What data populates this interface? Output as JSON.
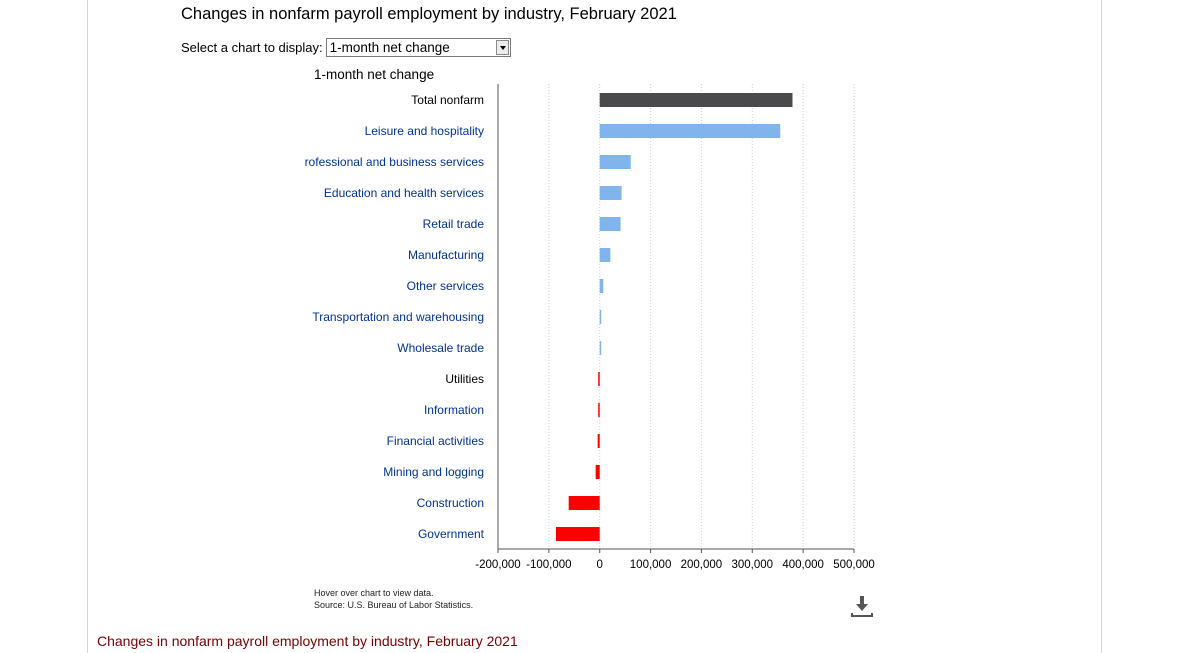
{
  "page": {
    "title": "Changes in nonfarm payroll employment by industry, February 2021",
    "selector": {
      "label": "Select a chart to display:",
      "selected": "1-month net change"
    },
    "footnote_hover": "Hover over chart to view data.",
    "footnote_source": "Source: U.S. Bureau of Labor Statistics.",
    "bottom_caption": "Changes in nonfarm payroll employment by industry, February 2021",
    "download_icon": "download-icon"
  },
  "chart_data": {
    "type": "bar",
    "orientation": "horizontal",
    "title": "1-month net change",
    "categories": [
      "Total nonfarm",
      "Leisure and hospitality",
      "rofessional and business services",
      "Education and health services",
      "Retail trade",
      "Manufacturing",
      "Other services",
      "Transportation and warehousing",
      "Wholesale trade",
      "Utilities",
      "Information",
      "Financial activities",
      "Mining and logging",
      "Construction",
      "Government"
    ],
    "category_label_colors": [
      "#000000",
      "#003399",
      "#003399",
      "#003399",
      "#003399",
      "#003399",
      "#003399",
      "#003399",
      "#003399",
      "#000000",
      "#003399",
      "#003399",
      "#003399",
      "#003399",
      "#003399"
    ],
    "values": [
      379000,
      355000,
      61000,
      43000,
      41000,
      21000,
      7000,
      3000,
      2000,
      -1000,
      -2000,
      -4000,
      -8000,
      -61000,
      -86000
    ],
    "xlim": [
      -200000,
      500000
    ],
    "xticks": [
      -200000,
      -100000,
      0,
      100000,
      200000,
      300000,
      400000,
      500000
    ],
    "xtick_labels": [
      "-200,000",
      "-100,000",
      "0",
      "100,000",
      "200,000",
      "300,000",
      "400,000",
      "500,000"
    ],
    "grid": true,
    "colors": {
      "total": "#4a4a4d",
      "positive": "#7fb5ec",
      "negative": "#ff0000",
      "grid": "#cccccc",
      "axis": "#555555"
    }
  }
}
